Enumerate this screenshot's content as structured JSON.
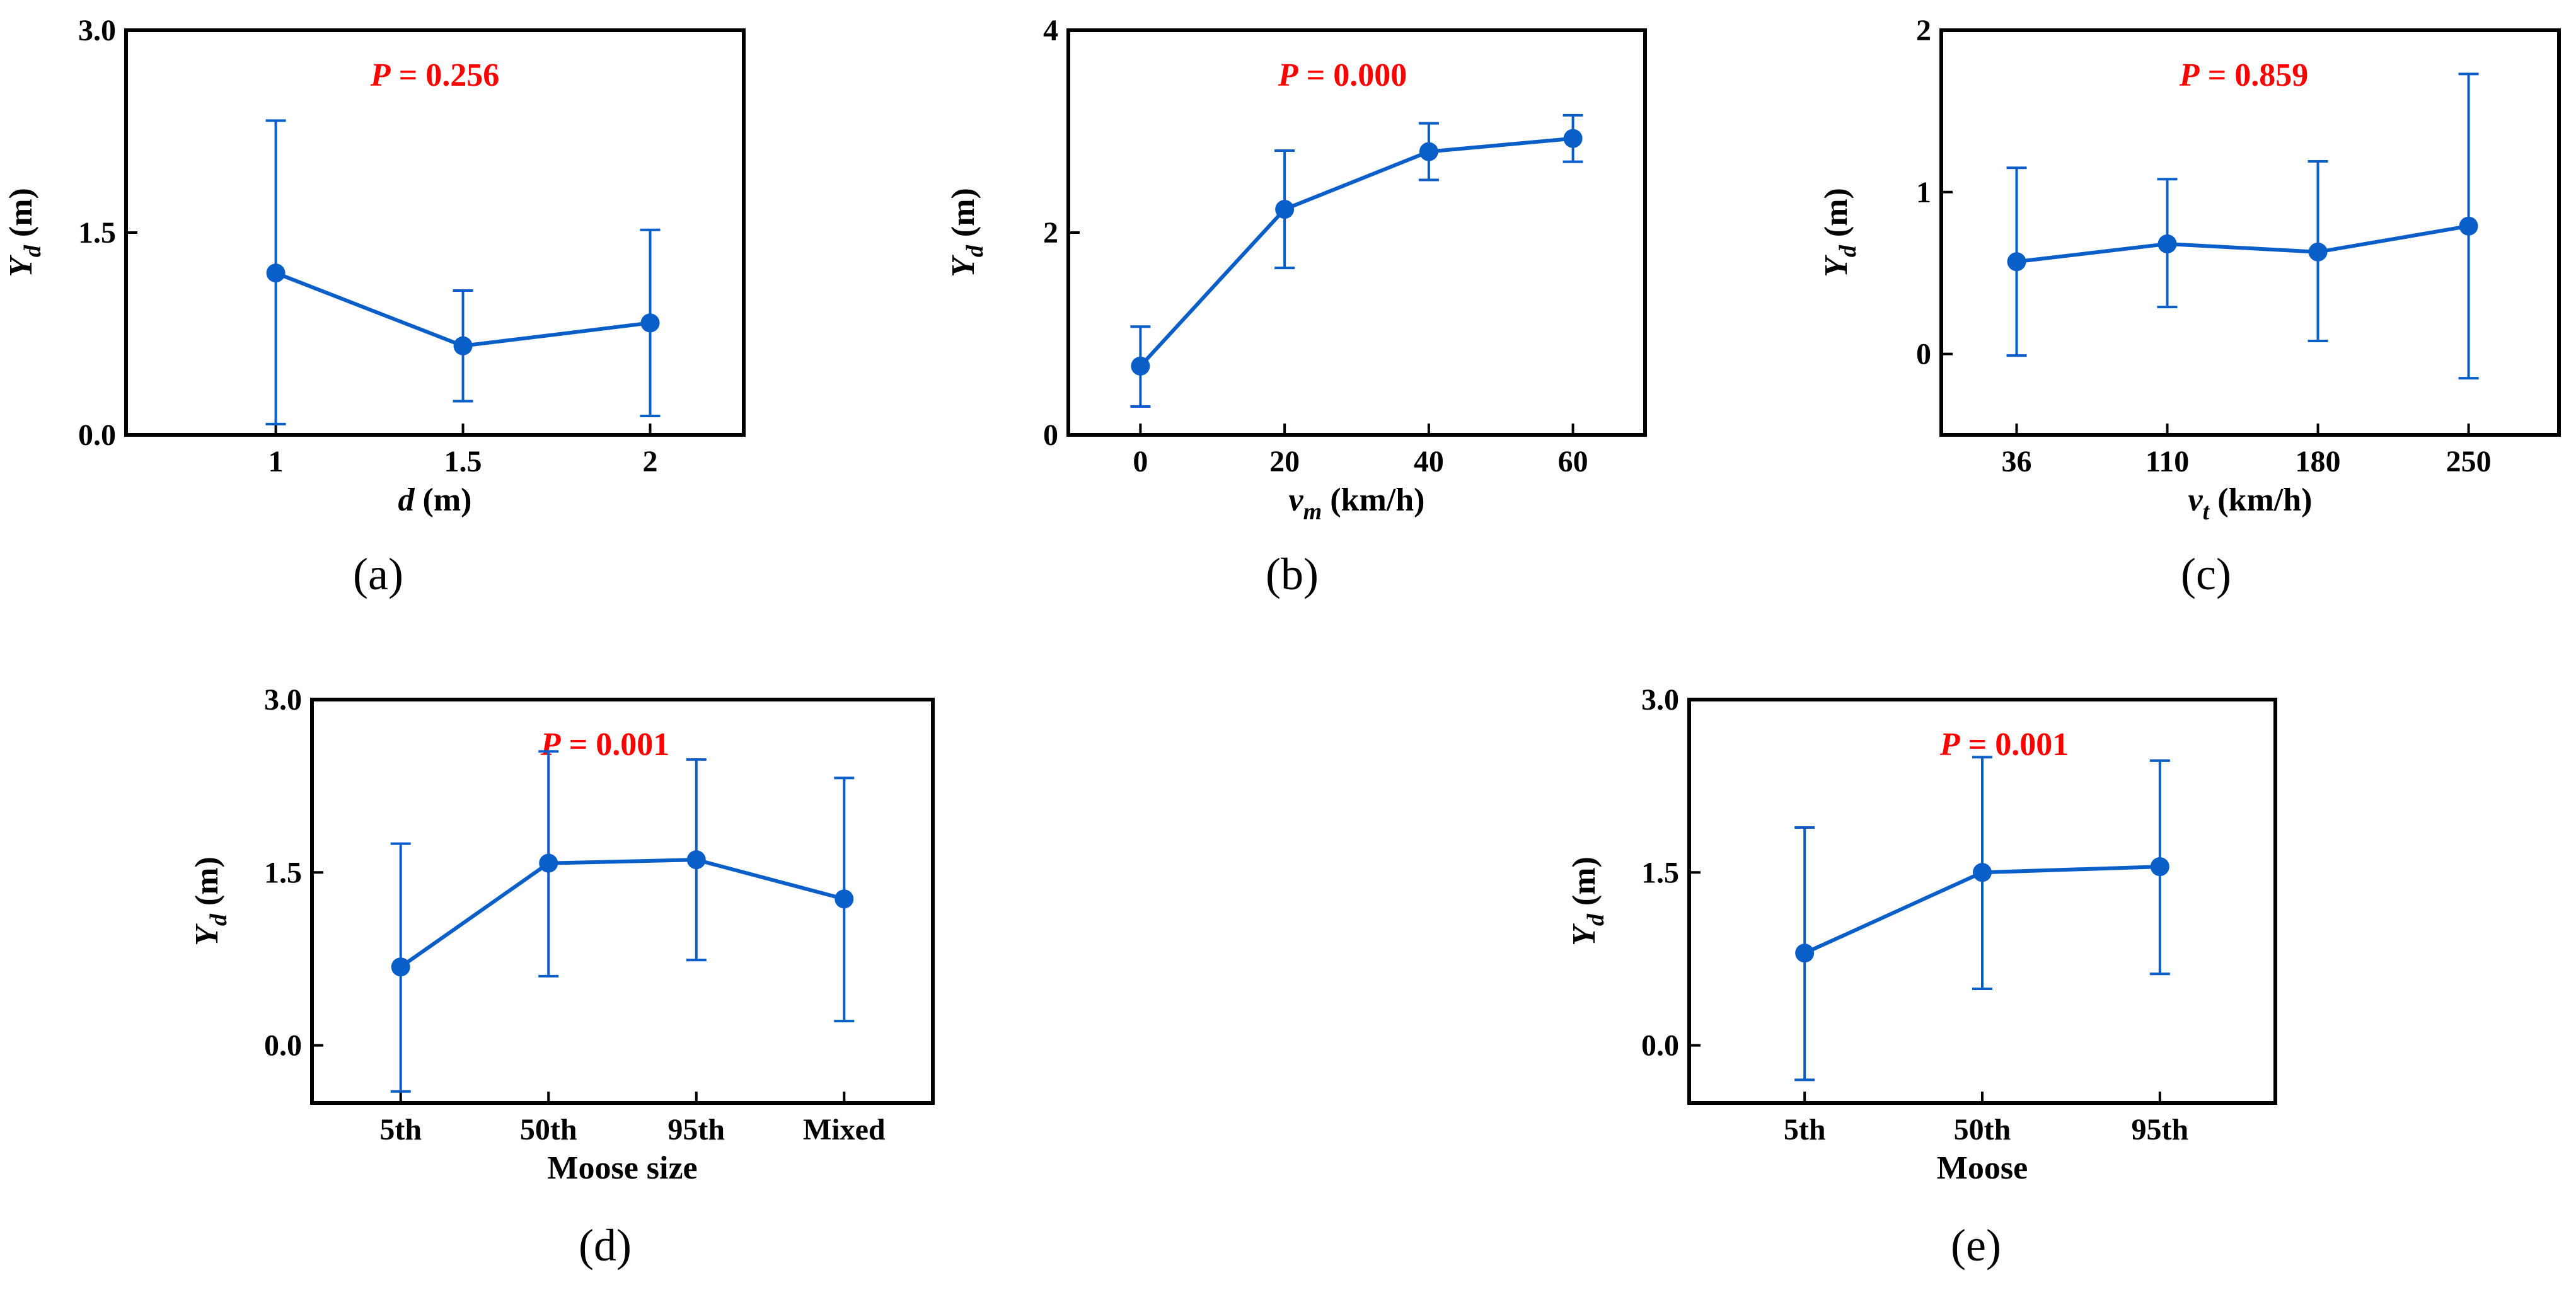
{
  "chart_data": [
    {
      "type": "line",
      "panel_label": "(a)",
      "xlabel_main": "d",
      "xlabel_sub": "",
      "xlabel_unit": " (m)",
      "ylabel_main": "Y",
      "ylabel_sub": "d",
      "ylabel_unit": " (m)",
      "p_italic": "P",
      "p_value": " = 0.256",
      "xlim": [
        0.6,
        2.25
      ],
      "ylim": [
        0,
        3
      ],
      "yticks": [
        0,
        1.5,
        3
      ],
      "ytick_labels": [
        "0.0",
        "1.5",
        "3.0"
      ],
      "xticks": [
        1,
        1.5,
        2
      ],
      "xtick_labels": [
        "1",
        "1.5",
        "2"
      ],
      "x": [
        1,
        1.5,
        2
      ],
      "y": [
        1.2,
        0.66,
        0.83
      ],
      "err_low": [
        0.08,
        0.25,
        0.14
      ],
      "err_high": [
        2.33,
        1.07,
        1.52
      ]
    },
    {
      "type": "line",
      "panel_label": "(b)",
      "xlabel_main": "v",
      "xlabel_sub": "m",
      "xlabel_unit": " (km/h)",
      "ylabel_main": "Y",
      "ylabel_sub": "d",
      "ylabel_unit": " (m)",
      "p_italic": "P",
      "p_value": " = 0.000",
      "xlim": [
        -10,
        70
      ],
      "ylim": [
        0,
        4
      ],
      "yticks": [
        0,
        2,
        4
      ],
      "ytick_labels": [
        "0",
        "2",
        "4"
      ],
      "xticks": [
        0,
        20,
        40,
        60
      ],
      "xtick_labels": [
        "0",
        "20",
        "40",
        "60"
      ],
      "x": [
        0,
        20,
        40,
        60
      ],
      "y": [
        0.68,
        2.23,
        2.8,
        2.93
      ],
      "err_low": [
        0.28,
        1.65,
        2.52,
        2.7
      ],
      "err_high": [
        1.07,
        2.81,
        3.08,
        3.16
      ]
    },
    {
      "type": "line",
      "panel_label": "(c)",
      "xlabel_main": "v",
      "xlabel_sub": "t",
      "xlabel_unit": " (km/h)",
      "ylabel_main": "Y",
      "ylabel_sub": "d",
      "ylabel_unit": " (m)",
      "p_italic": "P",
      "p_value": " = 0.859",
      "xlim": [
        0.5,
        4.6
      ],
      "ylim": [
        -0.5,
        2
      ],
      "yticks": [
        0,
        1,
        2
      ],
      "ytick_labels": [
        "0",
        "1",
        "2"
      ],
      "xticks": [
        1,
        2,
        3,
        4
      ],
      "xtick_labels": [
        "36",
        "110",
        "180",
        "250"
      ],
      "x": [
        1,
        2,
        3,
        4
      ],
      "y": [
        0.57,
        0.68,
        0.63,
        0.79
      ],
      "err_low": [
        -0.01,
        0.29,
        0.08,
        -0.15
      ],
      "err_high": [
        1.15,
        1.08,
        1.19,
        1.73
      ]
    },
    {
      "type": "line",
      "panel_label": "(d)",
      "xlabel_main": "Moose size",
      "xlabel_sub": "",
      "xlabel_unit": "",
      "ylabel_main": "Y",
      "ylabel_sub": "d",
      "ylabel_unit": " (m)",
      "p_italic": "P",
      "p_value": " = 0.001",
      "xlim": [
        0.4,
        4.6
      ],
      "ylim": [
        -0.5,
        3
      ],
      "yticks": [
        0,
        1.5,
        3
      ],
      "ytick_labels": [
        "0.0",
        "1.5",
        "3.0"
      ],
      "xticks": [
        1,
        2,
        3,
        4
      ],
      "xtick_labels": [
        "5th",
        "50th",
        "95th",
        "Mixed"
      ],
      "x": [
        1,
        2,
        3,
        4
      ],
      "y": [
        0.68,
        1.58,
        1.61,
        1.27
      ],
      "err_low": [
        -0.4,
        0.6,
        0.74,
        0.21
      ],
      "err_high": [
        1.75,
        2.55,
        2.48,
        2.32
      ]
    },
    {
      "type": "line",
      "panel_label": "(e)",
      "xlabel_main": "Moose",
      "xlabel_sub": "",
      "xlabel_unit": "",
      "ylabel_main": "Y",
      "ylabel_sub": "d",
      "ylabel_unit": " (m)",
      "p_italic": "P",
      "p_value": " = 0.001",
      "xlim": [
        0.35,
        3.65
      ],
      "ylim": [
        -0.5,
        3
      ],
      "yticks": [
        0,
        1.5,
        3
      ],
      "ytick_labels": [
        "0.0",
        "1.5",
        "3.0"
      ],
      "xticks": [
        1,
        2,
        3
      ],
      "xtick_labels": [
        "5th",
        "50th",
        "95th"
      ],
      "x": [
        1,
        2,
        3
      ],
      "y": [
        0.8,
        1.5,
        1.55
      ],
      "err_low": [
        -0.3,
        0.49,
        0.62
      ],
      "err_high": [
        1.89,
        2.5,
        2.47
      ]
    }
  ],
  "colors": {
    "series": "#0a5ec8",
    "p_value": "#ff0000",
    "axes": "#000000"
  }
}
